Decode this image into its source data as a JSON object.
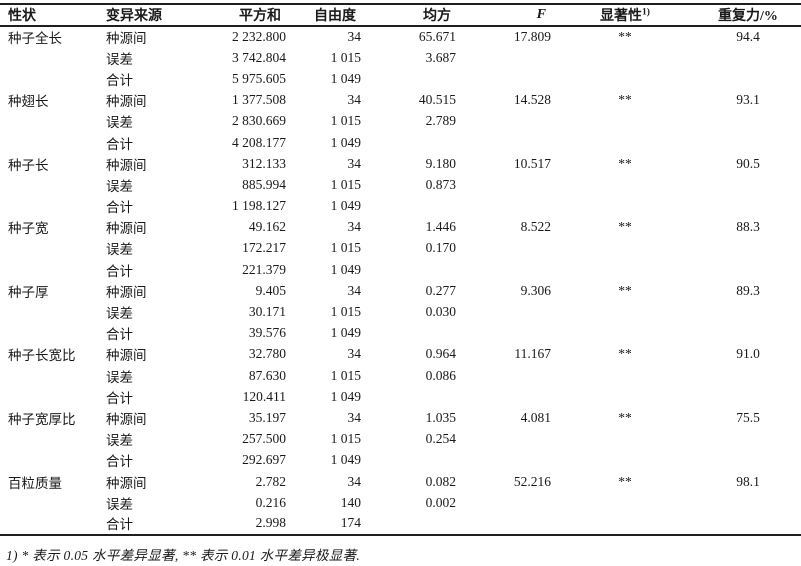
{
  "table": {
    "headers": {
      "trait": "性状",
      "source": "变异来源",
      "sum_of_squares": "平方和",
      "df": "自由度",
      "mean_square": "均方",
      "f": "F",
      "significance": "显著性",
      "significance_sup": "1)",
      "repeatability": "重复力/%"
    },
    "blocks": [
      {
        "trait": "种子全长",
        "rows": [
          {
            "source": "种源间",
            "ss": "2 232.800",
            "df": "34",
            "ms": "65.671",
            "f": "17.809",
            "sig": "**",
            "rep": "94.4"
          },
          {
            "source": "误差",
            "ss": "3 742.804",
            "df": "1 015",
            "ms": "3.687",
            "f": "",
            "sig": "",
            "rep": ""
          },
          {
            "source": "合计",
            "ss": "5 975.605",
            "df": "1 049",
            "ms": "",
            "f": "",
            "sig": "",
            "rep": ""
          }
        ]
      },
      {
        "trait": "种翅长",
        "rows": [
          {
            "source": "种源间",
            "ss": "1 377.508",
            "df": "34",
            "ms": "40.515",
            "f": "14.528",
            "sig": "**",
            "rep": "93.1"
          },
          {
            "source": "误差",
            "ss": "2 830.669",
            "df": "1 015",
            "ms": "2.789",
            "f": "",
            "sig": "",
            "rep": ""
          },
          {
            "source": "合计",
            "ss": "4 208.177",
            "df": "1 049",
            "ms": "",
            "f": "",
            "sig": "",
            "rep": ""
          }
        ]
      },
      {
        "trait": "种子长",
        "rows": [
          {
            "source": "种源间",
            "ss": "312.133",
            "df": "34",
            "ms": "9.180",
            "f": "10.517",
            "sig": "**",
            "rep": "90.5"
          },
          {
            "source": "误差",
            "ss": "885.994",
            "df": "1 015",
            "ms": "0.873",
            "f": "",
            "sig": "",
            "rep": ""
          },
          {
            "source": "合计",
            "ss": "1 198.127",
            "df": "1 049",
            "ms": "",
            "f": "",
            "sig": "",
            "rep": ""
          }
        ]
      },
      {
        "trait": "种子宽",
        "rows": [
          {
            "source": "种源间",
            "ss": "49.162",
            "df": "34",
            "ms": "1.446",
            "f": "8.522",
            "sig": "**",
            "rep": "88.3"
          },
          {
            "source": "误差",
            "ss": "172.217",
            "df": "1 015",
            "ms": "0.170",
            "f": "",
            "sig": "",
            "rep": ""
          },
          {
            "source": "合计",
            "ss": "221.379",
            "df": "1 049",
            "ms": "",
            "f": "",
            "sig": "",
            "rep": ""
          }
        ]
      },
      {
        "trait": "种子厚",
        "rows": [
          {
            "source": "种源间",
            "ss": "9.405",
            "df": "34",
            "ms": "0.277",
            "f": "9.306",
            "sig": "**",
            "rep": "89.3"
          },
          {
            "source": "误差",
            "ss": "30.171",
            "df": "1 015",
            "ms": "0.030",
            "f": "",
            "sig": "",
            "rep": ""
          },
          {
            "source": "合计",
            "ss": "39.576",
            "df": "1 049",
            "ms": "",
            "f": "",
            "sig": "",
            "rep": ""
          }
        ]
      },
      {
        "trait": "种子长宽比",
        "rows": [
          {
            "source": "种源间",
            "ss": "32.780",
            "df": "34",
            "ms": "0.964",
            "f": "11.167",
            "sig": "**",
            "rep": "91.0"
          },
          {
            "source": "误差",
            "ss": "87.630",
            "df": "1 015",
            "ms": "0.086",
            "f": "",
            "sig": "",
            "rep": ""
          },
          {
            "source": "合计",
            "ss": "120.411",
            "df": "1 049",
            "ms": "",
            "f": "",
            "sig": "",
            "rep": ""
          }
        ]
      },
      {
        "trait": "种子宽厚比",
        "rows": [
          {
            "source": "种源间",
            "ss": "35.197",
            "df": "34",
            "ms": "1.035",
            "f": "4.081",
            "sig": "**",
            "rep": "75.5"
          },
          {
            "source": "误差",
            "ss": "257.500",
            "df": "1 015",
            "ms": "0.254",
            "f": "",
            "sig": "",
            "rep": ""
          },
          {
            "source": "合计",
            "ss": "292.697",
            "df": "1 049",
            "ms": "",
            "f": "",
            "sig": "",
            "rep": ""
          }
        ]
      },
      {
        "trait": "百粒质量",
        "rows": [
          {
            "source": "种源间",
            "ss": "2.782",
            "df": "34",
            "ms": "0.082",
            "f": "52.216",
            "sig": "**",
            "rep": "98.1"
          },
          {
            "source": "误差",
            "ss": "0.216",
            "df": "140",
            "ms": "0.002",
            "f": "",
            "sig": "",
            "rep": ""
          },
          {
            "source": "合计",
            "ss": "2.998",
            "df": "174",
            "ms": "",
            "f": "",
            "sig": "",
            "rep": ""
          }
        ]
      }
    ],
    "footnote": "1) * 表示 0.05 水平差异显著, ** 表示 0.01 水平差异极显著."
  },
  "colors": {
    "text": "#1a1a1a",
    "rule": "#1f1f1f",
    "background": "#ffffff"
  }
}
